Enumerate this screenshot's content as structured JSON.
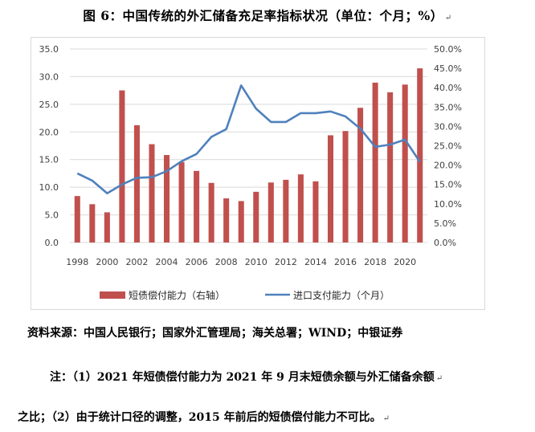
{
  "title": "图 6：中国传统的外汇储备充足率指标状况（单位：个月；%）",
  "para_mark": "↵",
  "chart_data": {
    "type": "bar+line",
    "categories": [
      "1998",
      "1999",
      "2000",
      "2001",
      "2002",
      "2003",
      "2004",
      "2005",
      "2006",
      "2007",
      "2008",
      "2009",
      "2010",
      "2011",
      "2012",
      "2013",
      "2014",
      "2015",
      "2016",
      "2017",
      "2018",
      "2019",
      "2020",
      "2021"
    ],
    "x_tick_labels": [
      "1998",
      "2000",
      "2002",
      "2004",
      "2006",
      "2008",
      "2010",
      "2012",
      "2014",
      "2016",
      "2018",
      "2020"
    ],
    "series": [
      {
        "name": "短债偿付能力（右轴）",
        "kind": "bar",
        "axis": "right",
        "color": "#C0504D",
        "values": [
          12.0,
          9.9,
          7.8,
          39.3,
          30.3,
          25.4,
          22.6,
          20.8,
          18.5,
          15.4,
          11.4,
          10.7,
          13.1,
          15.5,
          16.2,
          17.6,
          15.8,
          27.7,
          28.8,
          34.8,
          41.3,
          38.8,
          40.8,
          45.0
        ]
      },
      {
        "name": "进口支付能力（个月）",
        "kind": "line",
        "axis": "left",
        "color": "#4F81BD",
        "values": [
          12.5,
          11.2,
          8.9,
          10.5,
          11.7,
          11.8,
          12.9,
          14.7,
          16.0,
          19.1,
          20.5,
          28.4,
          24.2,
          21.8,
          21.8,
          23.4,
          23.4,
          23.7,
          22.8,
          20.6,
          17.3,
          17.7,
          18.6,
          14.6
        ]
      }
    ],
    "y_left": {
      "min": 0,
      "max": 35,
      "step": 5,
      "labels": [
        "0.0",
        "5.0",
        "10.0",
        "15.0",
        "20.0",
        "25.0",
        "30.0",
        "35.0"
      ]
    },
    "y_right": {
      "min": 0,
      "max": 50,
      "step": 5,
      "labels": [
        "0.0%",
        "5.0%",
        "10.0%",
        "15.0%",
        "20.0%",
        "25.0%",
        "30.0%",
        "35.0%",
        "40.0%",
        "45.0%",
        "50.0%"
      ]
    },
    "legend": {
      "position": "bottom"
    }
  },
  "source_line": "资料来源：中国人民银行；国家外汇管理局；海关总署；WIND；中银证券",
  "note_line1": "注：（1）2021 年短债偿付能力为 2021 年 9 月末短债余额与外汇储备余额",
  "note_line2": "之比；（2）由于统计口径的调整，2015 年前后的短债偿付能力不可比。"
}
